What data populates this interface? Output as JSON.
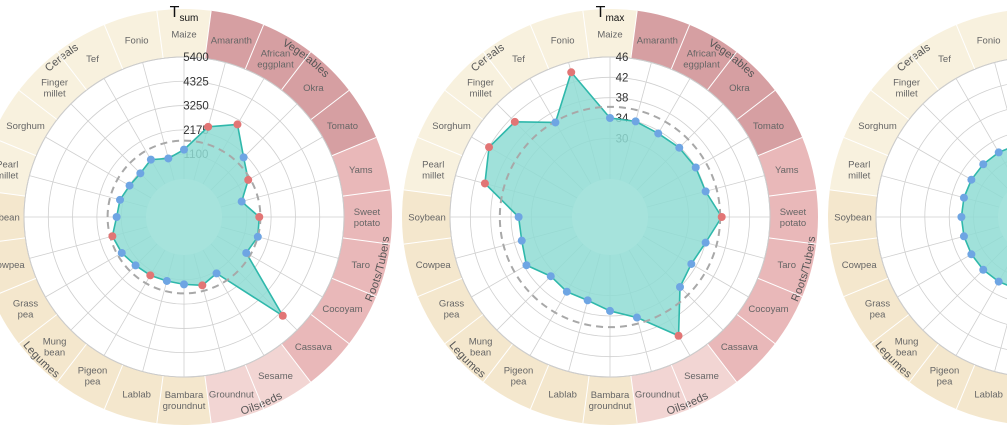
{
  "chart_data": {
    "type": "radar",
    "crops": [
      "Maize",
      "Amaranth",
      "African eggplant",
      "Okra",
      "Tomato",
      "Yams",
      "Sweet potato",
      "Taro",
      "Cocoyam",
      "Cassava",
      "Sesame",
      "Groundnut",
      "Bambara groundnut",
      "Lablab",
      "Pigeon pea",
      "Mung bean",
      "Grass pea",
      "Cowpea",
      "Soybean",
      "Pearl millet",
      "Sorghum",
      "Finger millet",
      "Tef",
      "Fonio"
    ],
    "groups": [
      {
        "name": "Cereals",
        "color": "#f8f1de",
        "start": 19,
        "count": 6
      },
      {
        "name": "Vegetables",
        "color": "#d69fa2",
        "start": 1,
        "count": 4
      },
      {
        "name": "Roots/Tubers",
        "color": "#e9b8b9",
        "start": 5,
        "count": 5
      },
      {
        "name": "Oilseeds",
        "color": "#f2d5d3",
        "start": 10,
        "count": 2
      },
      {
        "name": "Legumes",
        "color": "#f4e7cd",
        "start": 12,
        "count": 7
      }
    ],
    "fill_color": "#8fdcd3",
    "line_color": "#2fb8ab",
    "point_low_color": "#6ea5e3",
    "point_high_color": "#e27575",
    "panels": [
      {
        "title_main": "T",
        "title_sub": "sum",
        "min": 0,
        "max": 5400,
        "ticks": [
          1100,
          2175,
          3250,
          4325,
          5400
        ],
        "tick_labels": [
          "1100",
          "2175",
          "3250",
          "4325",
          "5400"
        ],
        "reference": 1700,
        "values": [
          1300,
          2450,
          3050,
          2050,
          1600,
          960,
          1650,
          1700,
          1500,
          4500,
          1200,
          1450,
          1300,
          1250,
          1300,
          1350,
          1500,
          1600,
          1300,
          1250,
          1100,
          1050,
          1250,
          1000
        ],
        "high": [
          false,
          true,
          true,
          false,
          true,
          false,
          true,
          false,
          false,
          true,
          false,
          true,
          false,
          false,
          true,
          false,
          false,
          true,
          false,
          false,
          false,
          false,
          false,
          false
        ],
        "show_labels": true
      },
      {
        "title_main": "T",
        "title_sub": "max",
        "min": 22,
        "max": 46,
        "ticks": [
          30,
          34,
          38,
          42,
          46
        ],
        "tick_labels": [
          "30",
          "34",
          "38",
          "42",
          "46"
        ],
        "reference": 36.2,
        "values": [
          34,
          34,
          33.5,
          33.8,
          34,
          34,
          36.5,
          34,
          33,
          34,
          41.5,
          35,
          33,
          31.5,
          31.5,
          31,
          33.5,
          32.5,
          32.5,
          40,
          42,
          41,
          36,
          44
        ],
        "high": [
          false,
          false,
          false,
          false,
          false,
          false,
          true,
          false,
          false,
          false,
          true,
          false,
          false,
          false,
          false,
          false,
          false,
          false,
          false,
          true,
          true,
          true,
          false,
          true
        ],
        "show_labels": true
      },
      {
        "title_main": "",
        "title_sub": "",
        "min": 0,
        "max": 10,
        "ticks": [
          2,
          4,
          6,
          8,
          10
        ],
        "tick_labels": [],
        "reference": 0,
        "values": [
          3,
          3,
          3,
          3,
          3,
          3,
          3,
          3,
          3,
          3,
          3,
          3,
          3,
          3,
          3,
          3,
          3,
          3,
          3,
          3,
          3,
          3,
          3,
          3
        ],
        "high": [
          false,
          false,
          false,
          false,
          false,
          false,
          false,
          false,
          false,
          false,
          false,
          false,
          false,
          false,
          false,
          false,
          false,
          false,
          false,
          false,
          false,
          false,
          false,
          false
        ],
        "show_labels": true
      }
    ]
  }
}
